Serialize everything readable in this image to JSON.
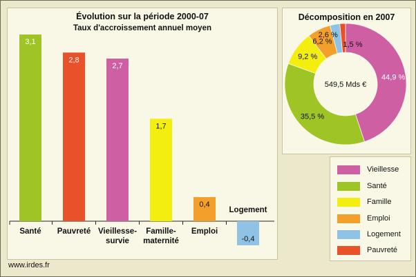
{
  "footer": {
    "website": "www.irdes.fr"
  },
  "colors": {
    "Vieillesse": "#cf5fa3",
    "Santé": "#9fc425",
    "Famille": "#f4ee0e",
    "Emploi": "#f29f2c",
    "Logement": "#8fc2e5",
    "Pauvreté": "#e8512a"
  },
  "chart_data": [
    {
      "type": "bar",
      "title": "Évolution sur la période 2000-07",
      "subtitle": "Taux d'accroissement annuel moyen",
      "categories": [
        "Santé",
        "Pauvreté",
        "Vieillesse-survie",
        "Famille-maternité",
        "Emploi",
        "Logement"
      ],
      "category_labels": [
        [
          "Santé"
        ],
        [
          "Pauvreté"
        ],
        [
          "Vieillesse-",
          "survie"
        ],
        [
          "Famille-",
          "maternité"
        ],
        [
          "Emploi"
        ],
        [
          "Logement"
        ]
      ],
      "values": [
        3.1,
        2.8,
        2.7,
        1.7,
        0.4,
        -0.4
      ],
      "value_labels": [
        "3,1",
        "2,8",
        "2,7",
        "1,7",
        "0,4",
        "-0,4"
      ],
      "colors": [
        "#9fc425",
        "#e8512a",
        "#cf5fa3",
        "#f4ee0e",
        "#f29f2c",
        "#8fc2e5"
      ]
    },
    {
      "type": "pie",
      "title": "Décomposition en 2007",
      "center_label": "549,5 Mds €",
      "labels": [
        "Vieillesse",
        "Santé",
        "Famille",
        "Emploi",
        "Logement",
        "Pauvreté"
      ],
      "values": [
        44.9,
        35.5,
        9.2,
        6.2,
        2.6,
        1.5
      ],
      "value_labels": [
        "44,9 %",
        "35,5 %",
        "9,2 %",
        "6,2 %",
        "2,6 %",
        "1,5 %"
      ],
      "colors": [
        "#cf5fa3",
        "#9fc425",
        "#f4ee0e",
        "#f29f2c",
        "#8fc2e5",
        "#e8512a"
      ],
      "legend": "bottom-right"
    }
  ]
}
